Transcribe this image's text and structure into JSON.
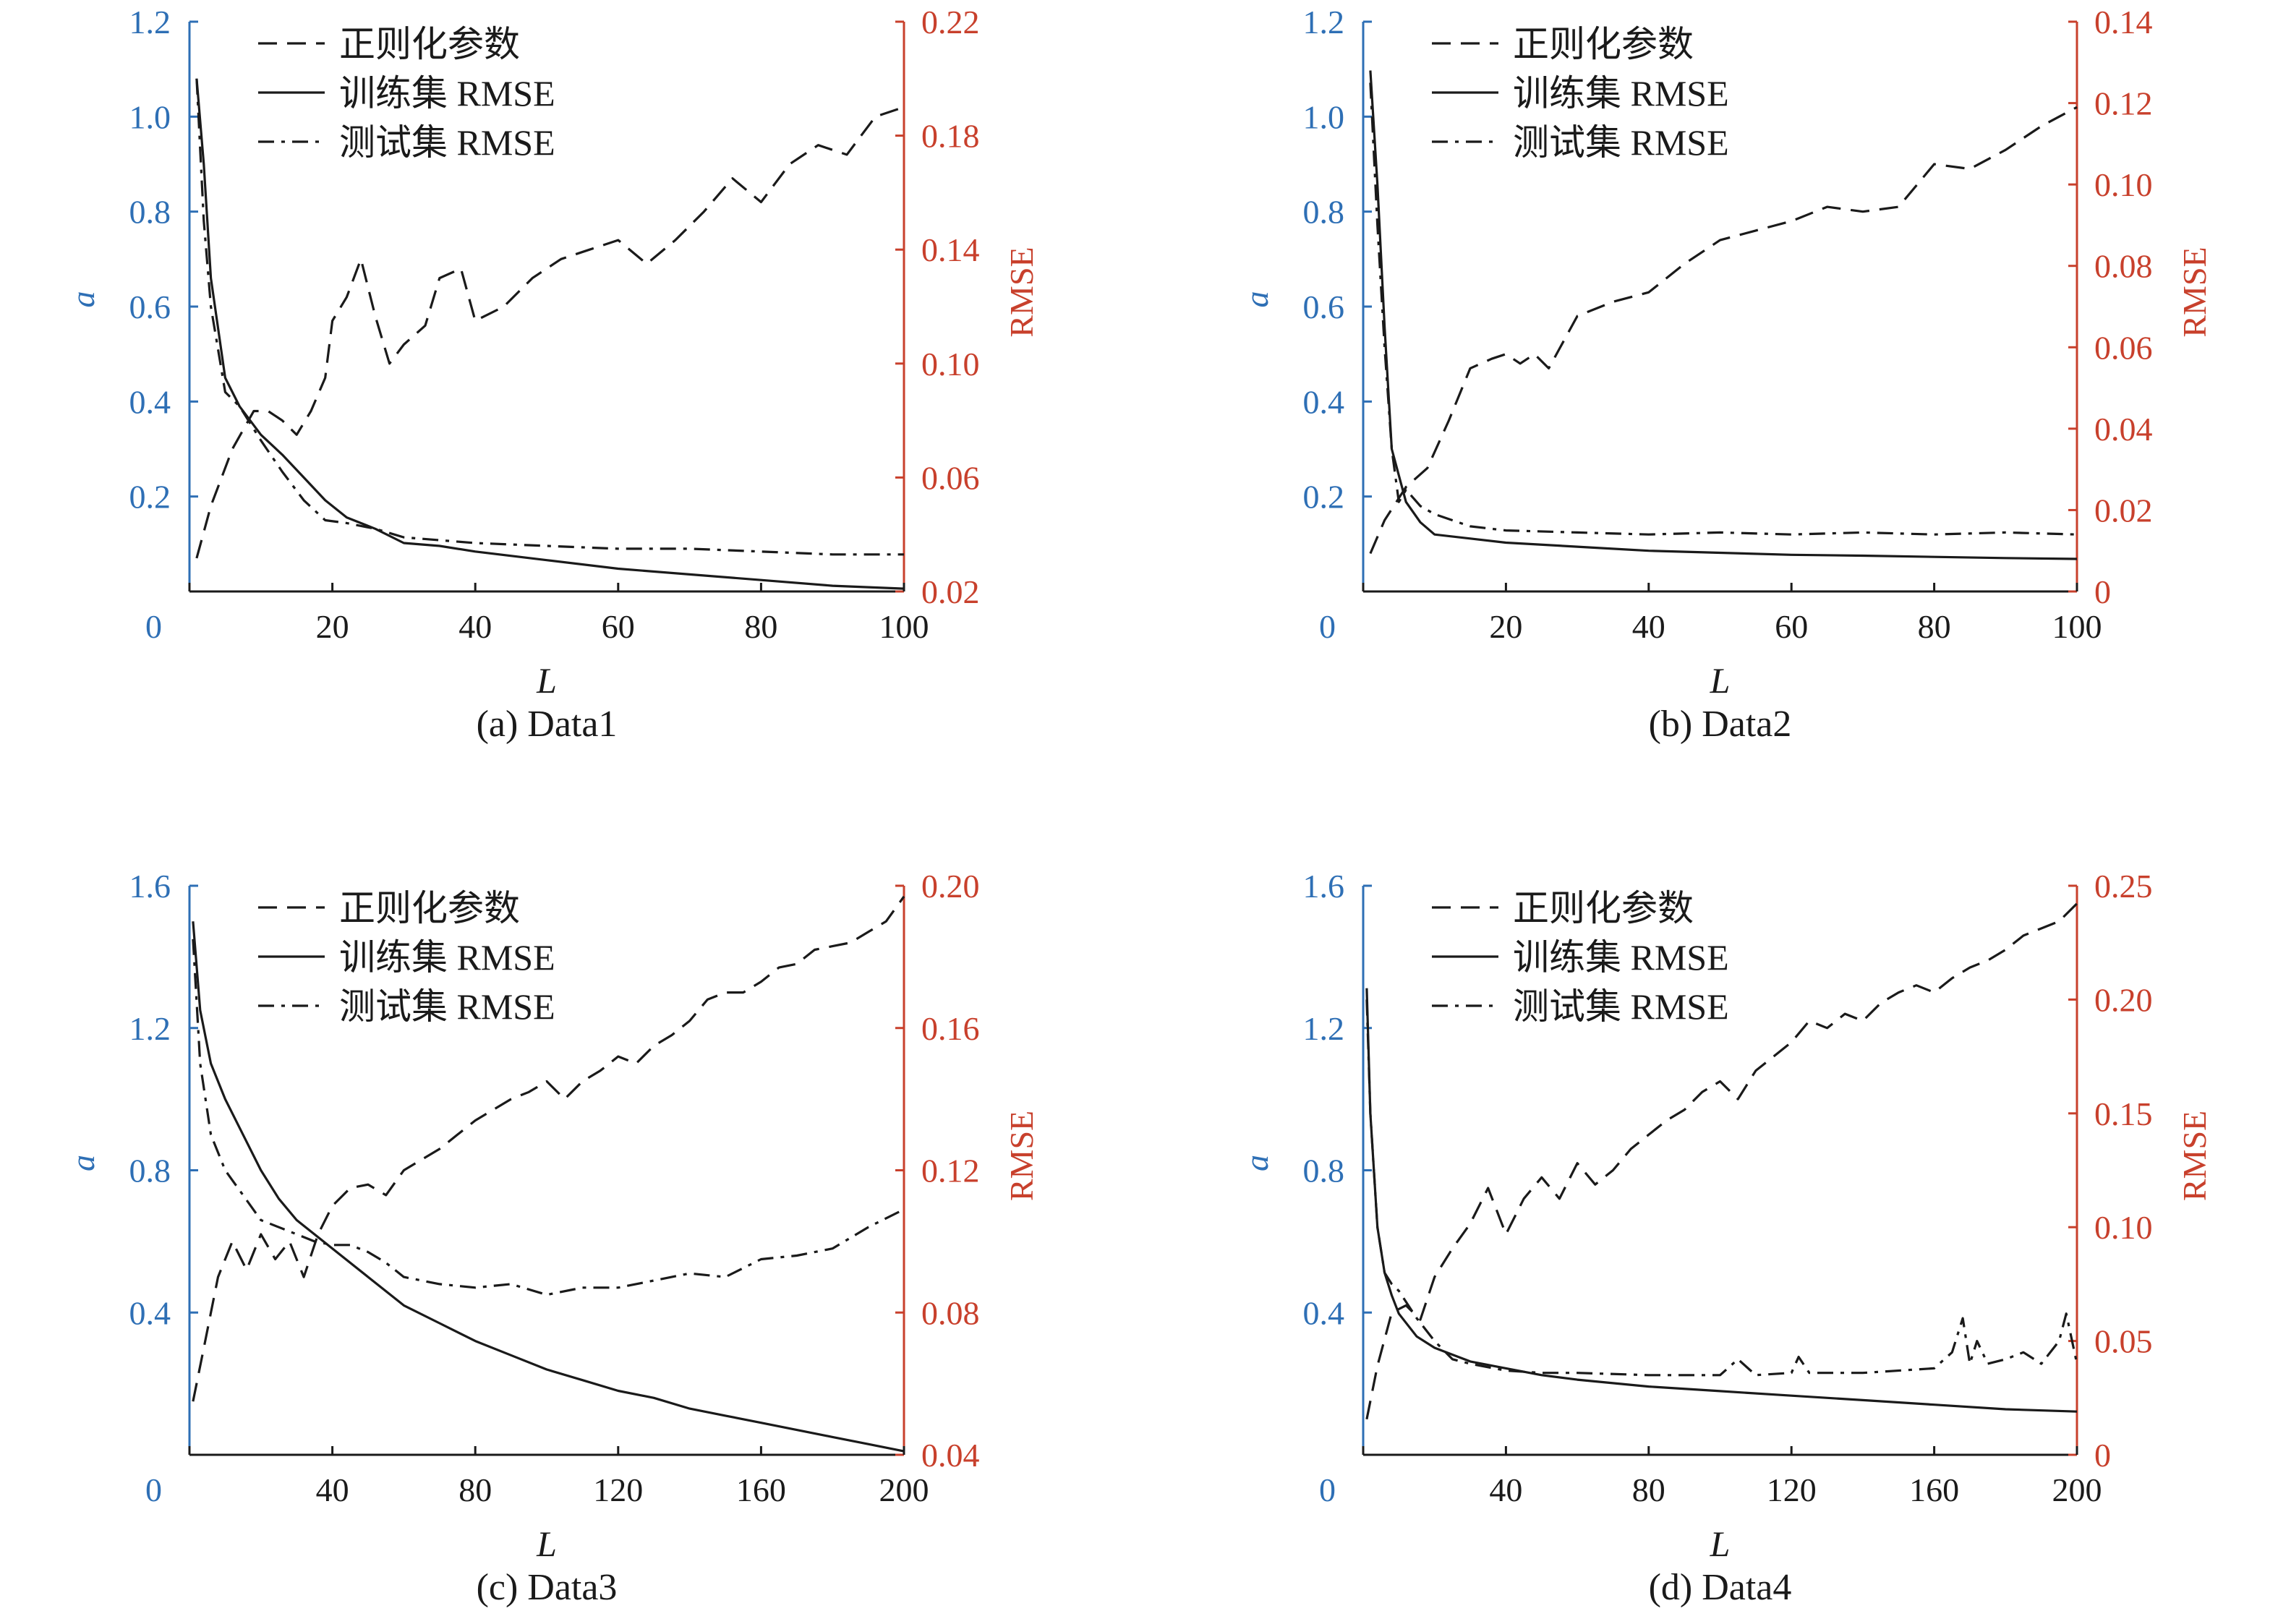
{
  "figure": {
    "colors": {
      "left_axis": "#2e6fb5",
      "right_axis": "#c8402c",
      "lines": "#1a1a1a"
    },
    "legend_labels": [
      "正则化参数",
      "训练集 RMSE",
      "测试集 RMSE"
    ],
    "line_styles": [
      "dashed",
      "solid",
      "dash-dot"
    ]
  },
  "chart_data": [
    {
      "type": "line",
      "caption": "(a) Data1",
      "xlabel": "L",
      "ylabel_left": "a",
      "ylabel_right": "RMSE",
      "xlim": [
        0,
        100
      ],
      "ylim_left": [
        0,
        1.2
      ],
      "ylim_right": [
        0.02,
        0.22
      ],
      "xticks": [
        0,
        20,
        40,
        60,
        80,
        100
      ],
      "xtick_labels": [
        "",
        "20",
        "40",
        "60",
        "80",
        "100"
      ],
      "origin_label": "0",
      "yticks_left": [
        0.2,
        0.4,
        0.6,
        0.8,
        1.0,
        1.2
      ],
      "ytick_labels_left": [
        "0.2",
        "0.4",
        "0.6",
        "0.8",
        "1.0",
        "1.2"
      ],
      "yticks_right": [
        0.02,
        0.06,
        0.1,
        0.14,
        0.18,
        0.22
      ],
      "ytick_labels_right": [
        "0.02",
        "0.06",
        "0.10",
        "0.14",
        "0.18",
        "0.22"
      ],
      "series": [
        {
          "name": "正则化参数",
          "axis": "left",
          "style": "dashed",
          "x": [
            1,
            3,
            6,
            9,
            11,
            13,
            15,
            17,
            19,
            20,
            22,
            24,
            26,
            28,
            30,
            33,
            35,
            38,
            40,
            44,
            48,
            52,
            56,
            60,
            64,
            68,
            72,
            76,
            80,
            84,
            88,
            92,
            96,
            100
          ],
          "y": [
            0.07,
            0.18,
            0.3,
            0.38,
            0.38,
            0.36,
            0.33,
            0.38,
            0.45,
            0.57,
            0.62,
            0.7,
            0.58,
            0.48,
            0.52,
            0.56,
            0.66,
            0.68,
            0.57,
            0.6,
            0.66,
            0.7,
            0.72,
            0.74,
            0.69,
            0.74,
            0.8,
            0.87,
            0.82,
            0.9,
            0.94,
            0.92,
            1.0,
            1.02
          ]
        },
        {
          "name": "训练集 RMSE",
          "axis": "right",
          "style": "solid",
          "x": [
            1,
            2,
            3,
            5,
            7,
            10,
            13,
            16,
            19,
            22,
            26,
            30,
            35,
            40,
            50,
            60,
            70,
            80,
            90,
            100
          ],
          "y": [
            0.2,
            0.17,
            0.13,
            0.095,
            0.085,
            0.075,
            0.068,
            0.06,
            0.052,
            0.046,
            0.042,
            0.037,
            0.036,
            0.034,
            0.031,
            0.028,
            0.026,
            0.024,
            0.022,
            0.021
          ]
        },
        {
          "name": "测试集 RMSE",
          "axis": "right",
          "style": "dash-dot",
          "x": [
            1,
            2,
            3,
            5,
            7,
            10,
            13,
            16,
            19,
            22,
            26,
            30,
            35,
            40,
            50,
            60,
            70,
            80,
            90,
            100
          ],
          "y": [
            0.2,
            0.15,
            0.12,
            0.09,
            0.085,
            0.073,
            0.062,
            0.052,
            0.045,
            0.044,
            0.042,
            0.039,
            0.038,
            0.037,
            0.036,
            0.035,
            0.035,
            0.034,
            0.033,
            0.033
          ]
        }
      ]
    },
    {
      "type": "line",
      "caption": "(b) Data2",
      "xlabel": "L",
      "ylabel_left": "a",
      "ylabel_right": "RMSE",
      "xlim": [
        0,
        100
      ],
      "ylim_left": [
        0,
        1.2
      ],
      "ylim_right": [
        0,
        0.14
      ],
      "xticks": [
        0,
        20,
        40,
        60,
        80,
        100
      ],
      "xtick_labels": [
        "",
        "20",
        "40",
        "60",
        "80",
        "100"
      ],
      "origin_label": "0",
      "yticks_left": [
        0.2,
        0.4,
        0.6,
        0.8,
        1.0,
        1.2
      ],
      "ytick_labels_left": [
        "0.2",
        "0.4",
        "0.6",
        "0.8",
        "1.0",
        "1.2"
      ],
      "yticks_right": [
        0,
        0.02,
        0.04,
        0.06,
        0.08,
        0.1,
        0.12,
        0.14
      ],
      "ytick_labels_right": [
        "0",
        "0.02",
        "0.04",
        "0.06",
        "0.08",
        "0.10",
        "0.12",
        "0.14"
      ],
      "series": [
        {
          "name": "正则化参数",
          "axis": "left",
          "style": "dashed",
          "x": [
            1,
            3,
            6,
            9,
            12,
            15,
            18,
            20,
            22,
            24,
            26,
            30,
            35,
            40,
            45,
            50,
            55,
            60,
            65,
            70,
            75,
            80,
            85,
            90,
            95,
            100
          ],
          "y": [
            0.08,
            0.15,
            0.22,
            0.26,
            0.36,
            0.47,
            0.49,
            0.5,
            0.48,
            0.5,
            0.47,
            0.58,
            0.61,
            0.63,
            0.69,
            0.74,
            0.76,
            0.78,
            0.81,
            0.8,
            0.81,
            0.9,
            0.89,
            0.93,
            0.98,
            1.02
          ]
        },
        {
          "name": "训练集 RMSE",
          "axis": "right",
          "style": "solid",
          "x": [
            1,
            2,
            3,
            4,
            6,
            8,
            10,
            15,
            20,
            30,
            40,
            50,
            60,
            70,
            80,
            90,
            100
          ],
          "y": [
            0.128,
            0.1,
            0.065,
            0.035,
            0.022,
            0.017,
            0.014,
            0.013,
            0.012,
            0.011,
            0.01,
            0.0095,
            0.009,
            0.0088,
            0.0085,
            0.0082,
            0.008
          ]
        },
        {
          "name": "测试集 RMSE",
          "axis": "right",
          "style": "dash-dot",
          "x": [
            1,
            2,
            3,
            4,
            5,
            6,
            8,
            10,
            15,
            20,
            30,
            40,
            50,
            60,
            70,
            80,
            90,
            100
          ],
          "y": [
            0.125,
            0.09,
            0.06,
            0.035,
            0.022,
            0.025,
            0.021,
            0.019,
            0.016,
            0.015,
            0.0145,
            0.014,
            0.0145,
            0.014,
            0.0145,
            0.014,
            0.0145,
            0.014
          ]
        }
      ]
    },
    {
      "type": "line",
      "caption": "(c) Data3",
      "xlabel": "L",
      "ylabel_left": "a",
      "ylabel_right": "RMSE",
      "xlim": [
        0,
        200
      ],
      "ylim_left": [
        0,
        1.6
      ],
      "ylim_right": [
        0.04,
        0.2
      ],
      "xticks": [
        0,
        40,
        80,
        120,
        160,
        200
      ],
      "xtick_labels": [
        "",
        "40",
        "80",
        "120",
        "160",
        "200"
      ],
      "origin_label": "0",
      "yticks_left": [
        0.4,
        0.8,
        1.2,
        1.6
      ],
      "ytick_labels_left": [
        "0.4",
        "0.8",
        "1.2",
        "1.6"
      ],
      "yticks_right": [
        0.04,
        0.08,
        0.12,
        0.16,
        0.2
      ],
      "ytick_labels_right": [
        "0.04",
        "0.08",
        "0.12",
        "0.16",
        "0.20"
      ],
      "series": [
        {
          "name": "正则化参数",
          "axis": "left",
          "style": "dashed",
          "x": [
            1,
            4,
            8,
            12,
            16,
            20,
            24,
            28,
            32,
            36,
            40,
            45,
            50,
            55,
            60,
            65,
            70,
            75,
            80,
            85,
            90,
            95,
            100,
            105,
            110,
            115,
            120,
            125,
            130,
            135,
            140,
            145,
            150,
            155,
            160,
            165,
            170,
            175,
            180,
            185,
            190,
            195,
            200
          ],
          "y": [
            0.15,
            0.3,
            0.5,
            0.6,
            0.52,
            0.62,
            0.55,
            0.6,
            0.5,
            0.62,
            0.7,
            0.75,
            0.76,
            0.73,
            0.8,
            0.83,
            0.86,
            0.9,
            0.94,
            0.97,
            1.0,
            1.02,
            1.05,
            1.0,
            1.05,
            1.08,
            1.12,
            1.1,
            1.15,
            1.18,
            1.22,
            1.28,
            1.3,
            1.3,
            1.33,
            1.37,
            1.38,
            1.42,
            1.43,
            1.44,
            1.47,
            1.5,
            1.57
          ]
        },
        {
          "name": "训练集 RMSE",
          "axis": "right",
          "style": "solid",
          "x": [
            1,
            3,
            6,
            10,
            15,
            20,
            25,
            30,
            40,
            50,
            60,
            70,
            80,
            90,
            100,
            110,
            120,
            130,
            140,
            150,
            160,
            170,
            180,
            190,
            200
          ],
          "y": [
            0.19,
            0.165,
            0.15,
            0.14,
            0.13,
            0.12,
            0.112,
            0.106,
            0.098,
            0.09,
            0.082,
            0.077,
            0.072,
            0.068,
            0.064,
            0.061,
            0.058,
            0.056,
            0.053,
            0.051,
            0.049,
            0.047,
            0.045,
            0.043,
            0.041
          ]
        },
        {
          "name": "测试集 RMSE",
          "axis": "right",
          "style": "dash-dot",
          "x": [
            1,
            3,
            6,
            10,
            15,
            20,
            25,
            30,
            35,
            40,
            45,
            50,
            55,
            60,
            65,
            70,
            80,
            90,
            100,
            110,
            120,
            130,
            140,
            150,
            160,
            170,
            180,
            190,
            200
          ],
          "y": [
            0.185,
            0.15,
            0.13,
            0.12,
            0.113,
            0.106,
            0.104,
            0.102,
            0.1,
            0.099,
            0.099,
            0.097,
            0.094,
            0.09,
            0.089,
            0.088,
            0.087,
            0.088,
            0.085,
            0.087,
            0.087,
            0.089,
            0.091,
            0.09,
            0.095,
            0.096,
            0.098,
            0.104,
            0.109
          ]
        }
      ]
    },
    {
      "type": "line",
      "caption": "(d) Data4",
      "xlabel": "L",
      "ylabel_left": "a",
      "ylabel_right": "RMSE",
      "xlim": [
        0,
        200
      ],
      "ylim_left": [
        0,
        1.6
      ],
      "ylim_right": [
        0,
        0.25
      ],
      "xticks": [
        0,
        40,
        80,
        120,
        160,
        200
      ],
      "xtick_labels": [
        "",
        "40",
        "80",
        "120",
        "160",
        "200"
      ],
      "origin_label": "0",
      "yticks_left": [
        0.4,
        0.8,
        1.2,
        1.6
      ],
      "ytick_labels_left": [
        "0.4",
        "0.8",
        "1.2",
        "1.6"
      ],
      "yticks_right": [
        0,
        0.05,
        0.1,
        0.15,
        0.2,
        0.25
      ],
      "ytick_labels_right": [
        "0",
        "0.05",
        "0.10",
        "0.15",
        "0.20",
        "0.25"
      ],
      "series": [
        {
          "name": "正则化参数",
          "axis": "left",
          "style": "dashed",
          "x": [
            1,
            4,
            8,
            12,
            16,
            20,
            25,
            30,
            35,
            40,
            45,
            50,
            55,
            60,
            65,
            70,
            75,
            80,
            85,
            90,
            95,
            100,
            105,
            110,
            115,
            120,
            125,
            130,
            135,
            140,
            145,
            150,
            155,
            160,
            165,
            170,
            175,
            180,
            185,
            190,
            195,
            200
          ],
          "y": [
            0.1,
            0.25,
            0.4,
            0.42,
            0.38,
            0.5,
            0.58,
            0.65,
            0.75,
            0.62,
            0.72,
            0.78,
            0.72,
            0.82,
            0.76,
            0.8,
            0.86,
            0.9,
            0.94,
            0.97,
            1.02,
            1.05,
            1.0,
            1.08,
            1.12,
            1.16,
            1.22,
            1.2,
            1.24,
            1.22,
            1.27,
            1.3,
            1.32,
            1.3,
            1.34,
            1.37,
            1.39,
            1.42,
            1.46,
            1.48,
            1.5,
            1.55
          ]
        },
        {
          "name": "训练集 RMSE",
          "axis": "right",
          "style": "solid",
          "x": [
            1,
            2,
            4,
            6,
            8,
            10,
            15,
            20,
            25,
            30,
            40,
            50,
            60,
            80,
            100,
            120,
            140,
            160,
            180,
            200
          ],
          "y": [
            0.205,
            0.15,
            0.1,
            0.08,
            0.07,
            0.062,
            0.052,
            0.047,
            0.044,
            0.041,
            0.038,
            0.035,
            0.033,
            0.03,
            0.028,
            0.026,
            0.024,
            0.022,
            0.02,
            0.019
          ]
        },
        {
          "name": "测试集 RMSE",
          "axis": "right",
          "style": "dash-dot",
          "x": [
            1,
            2,
            4,
            6,
            8,
            10,
            15,
            20,
            25,
            30,
            40,
            50,
            60,
            80,
            100,
            105,
            110,
            120,
            122,
            125,
            140,
            160,
            165,
            168,
            170,
            172,
            175,
            180,
            185,
            190,
            195,
            197,
            200
          ],
          "y": [
            0.2,
            0.15,
            0.1,
            0.08,
            0.075,
            0.072,
            0.06,
            0.05,
            0.042,
            0.04,
            0.037,
            0.036,
            0.036,
            0.035,
            0.035,
            0.042,
            0.035,
            0.036,
            0.043,
            0.036,
            0.036,
            0.038,
            0.045,
            0.06,
            0.04,
            0.05,
            0.04,
            0.042,
            0.045,
            0.04,
            0.05,
            0.062,
            0.04
          ]
        }
      ]
    }
  ]
}
